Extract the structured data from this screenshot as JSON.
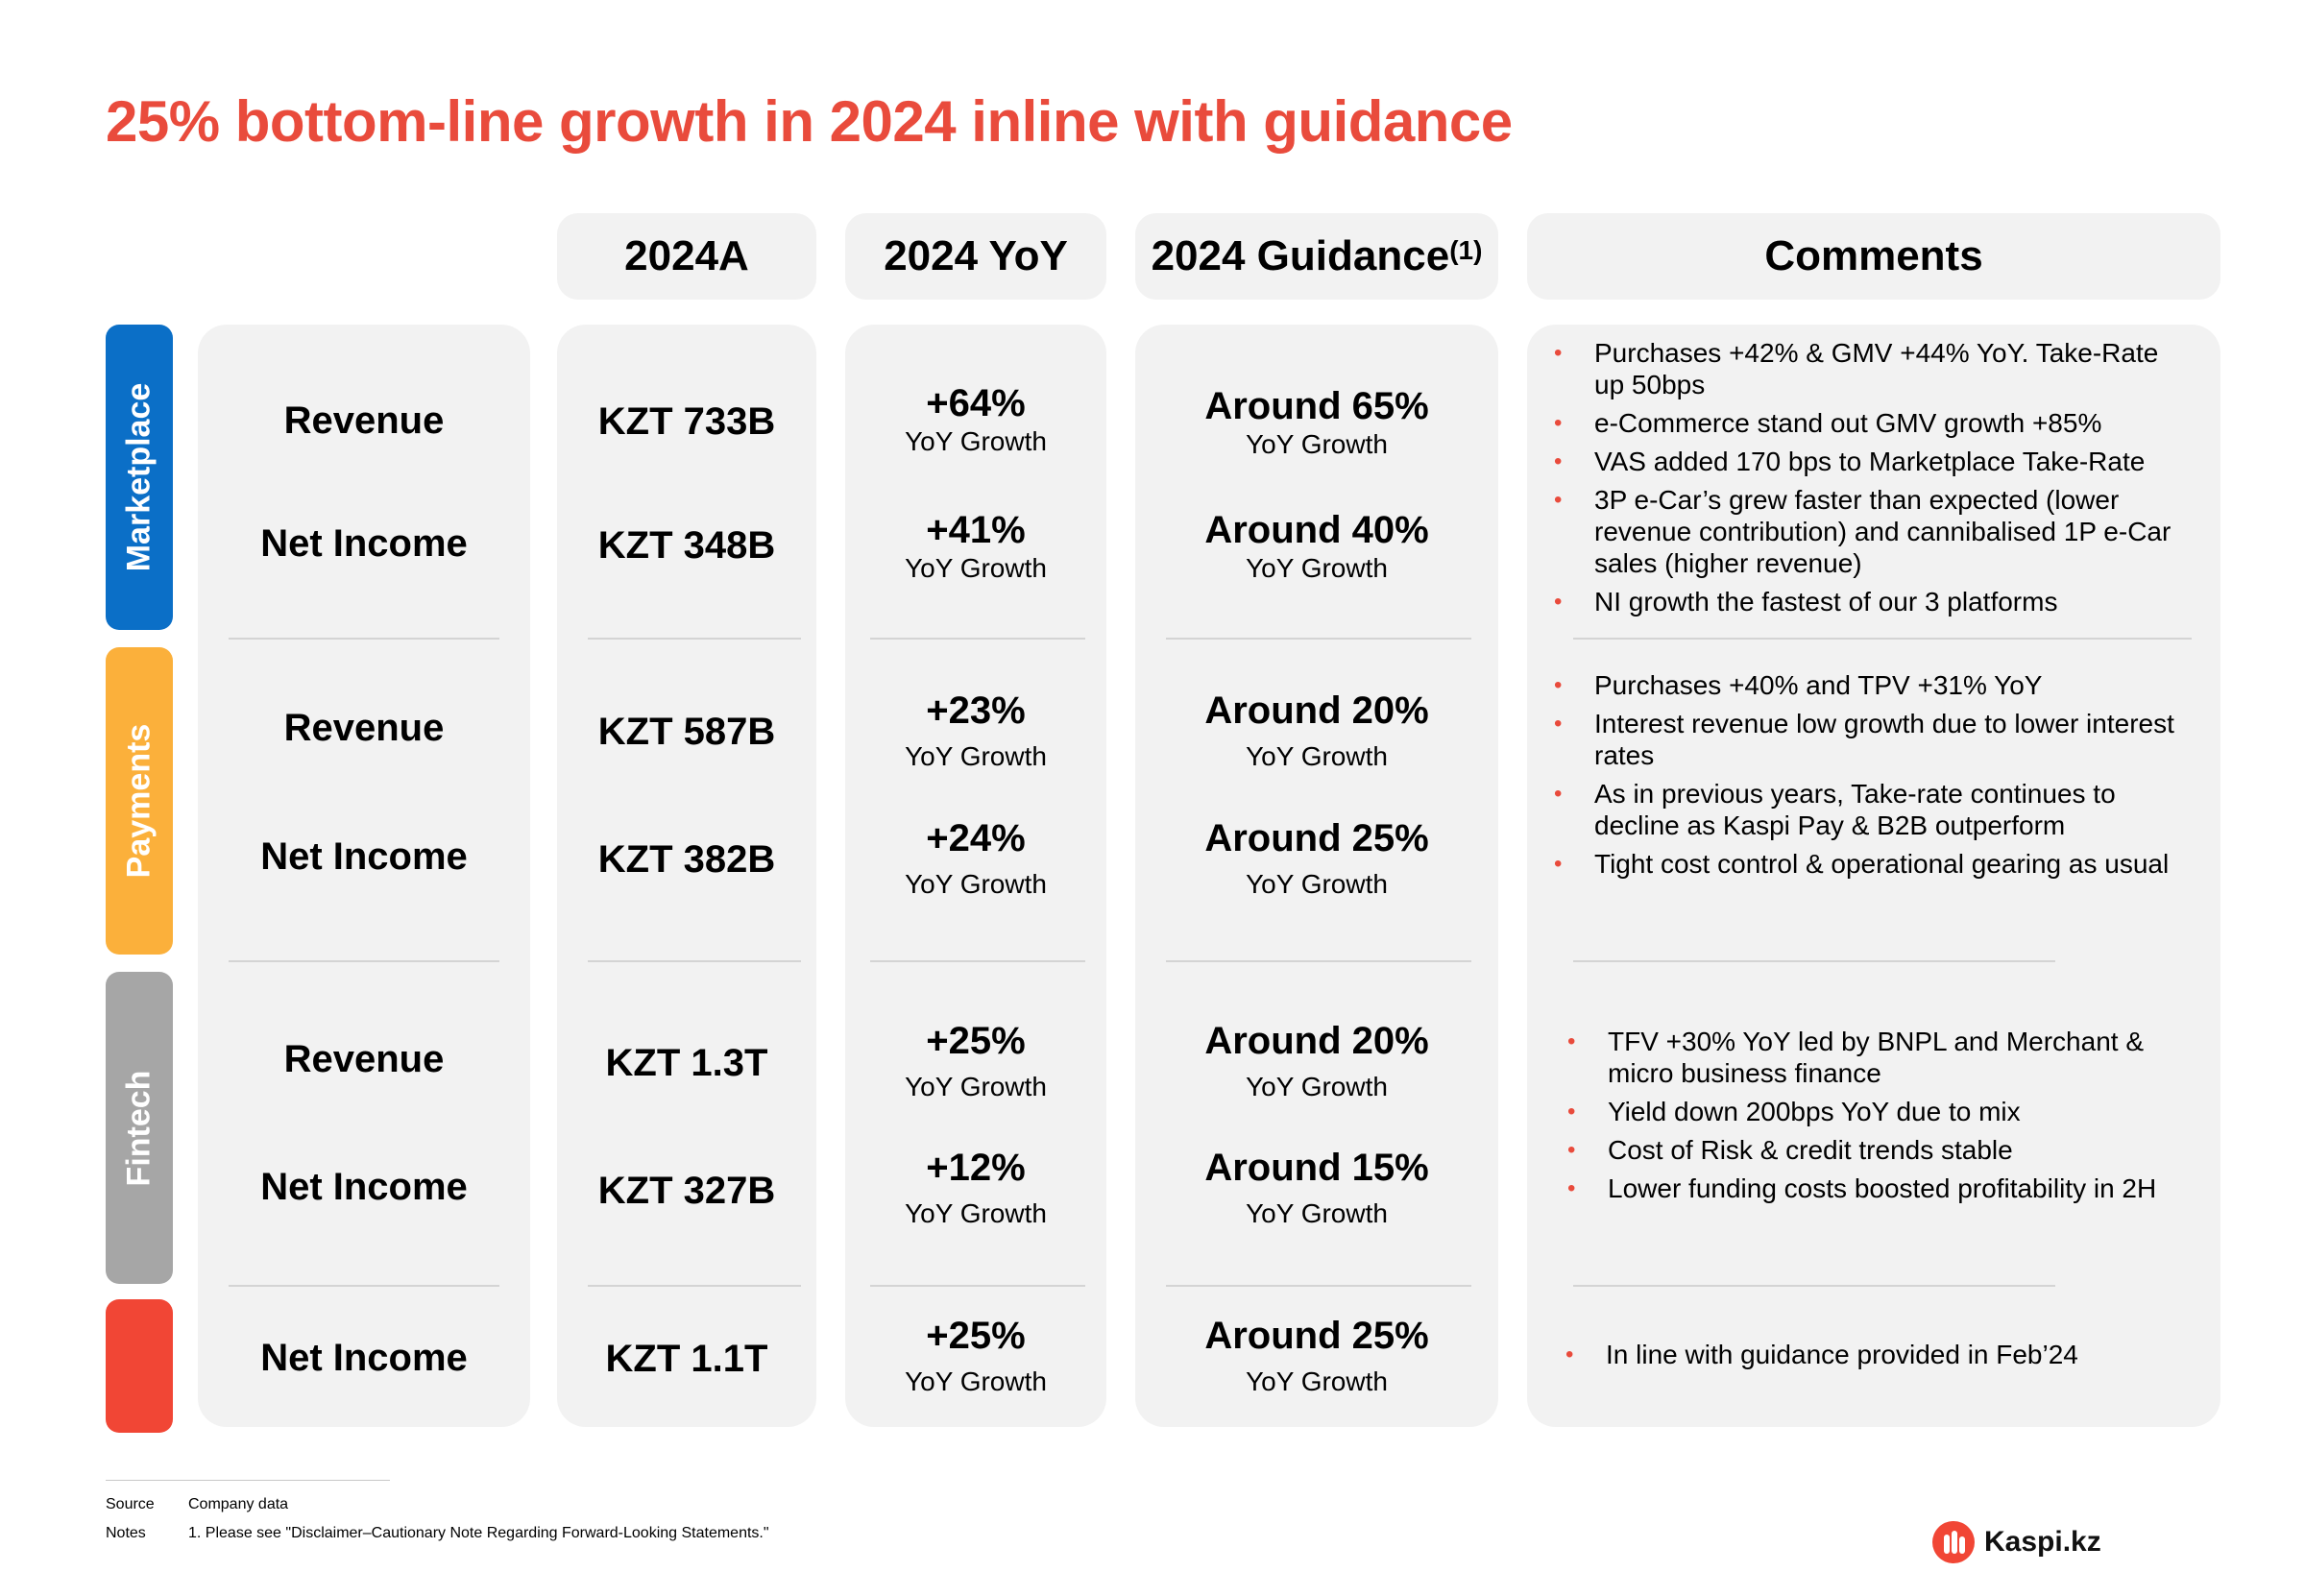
{
  "title": "25% bottom-line growth in 2024 inline with guidance",
  "headers": {
    "actual": "2024A",
    "yoy": "2024 YoY",
    "guidance": "2024 Guidance",
    "guidance_note": "(1)",
    "comments": "Comments"
  },
  "segments": {
    "marketplace": "Marketplace",
    "payments": "Payments",
    "fintech": "Fintech"
  },
  "colors": {
    "marketplace": "#0b6fc7",
    "payments": "#fbb03b",
    "fintech": "#a6a6a6",
    "total": "#f14635",
    "accent": "#e94b3c"
  },
  "rows": [
    {
      "metric": "Revenue",
      "actual": "KZT 733B",
      "yoy": "+64%",
      "yoy_sub": "YoY Growth",
      "guidance": "Around 65%",
      "guidance_sub": "YoY Growth"
    },
    {
      "metric": "Net Income",
      "actual": "KZT 348B",
      "yoy": "+41%",
      "yoy_sub": "YoY Growth",
      "guidance": "Around 40%",
      "guidance_sub": "YoY Growth"
    },
    {
      "metric": "Revenue",
      "actual": "KZT 587B",
      "yoy": "+23%",
      "yoy_sub": "YoY Growth",
      "guidance": "Around 20%",
      "guidance_sub": "YoY Growth"
    },
    {
      "metric": "Net Income",
      "actual": "KZT 382B",
      "yoy": "+24%",
      "yoy_sub": "YoY Growth",
      "guidance": "Around 25%",
      "guidance_sub": "YoY Growth"
    },
    {
      "metric": "Revenue",
      "actual": "KZT 1.3T",
      "yoy": "+25%",
      "yoy_sub": "YoY Growth",
      "guidance": "Around 20%",
      "guidance_sub": "YoY Growth"
    },
    {
      "metric": "Net Income",
      "actual": "KZT 327B",
      "yoy": "+12%",
      "yoy_sub": "YoY Growth",
      "guidance": "Around 15%",
      "guidance_sub": "YoY Growth"
    },
    {
      "metric": "Net Income",
      "actual": "KZT 1.1T",
      "yoy": "+25%",
      "yoy_sub": "YoY Growth",
      "guidance": "Around 25%",
      "guidance_sub": "YoY Growth"
    }
  ],
  "comments": {
    "marketplace": [
      "Purchases +42% & GMV +44% YoY. Take-Rate up 50bps",
      "e-Commerce stand out GMV growth +85%",
      "VAS added 170 bps to Marketplace Take-Rate",
      "3P e-Car’s grew faster than expected (lower revenue contribution) and cannibalised 1P e-Car sales (higher revenue)",
      "NI growth the fastest of our 3 platforms"
    ],
    "payments": [
      "Purchases +40% and TPV +31% YoY",
      "Interest revenue low growth due to lower interest rates",
      "As in previous years, Take-rate continues to decline as Kaspi Pay & B2B outperform",
      "Tight cost control & operational gearing as usual"
    ],
    "fintech": [
      "TFV +30% YoY led by BNPL and Merchant & micro business finance",
      "Yield down 200bps YoY due to mix",
      "Cost of Risk & credit trends stable",
      "Lower funding costs boosted profitability in 2H"
    ],
    "total": [
      "In line with guidance provided in Feb’24"
    ]
  },
  "bullet": "•",
  "footer": {
    "source_label": "Source",
    "source_text": "Company data",
    "notes_label": "Notes",
    "notes_text": "1. Please see \"Disclaimer–Cautionary Note Regarding Forward-Looking Statements.\""
  },
  "logo": {
    "text": "Kaspi.kz",
    "icon": "kaspi-logo-icon"
  }
}
